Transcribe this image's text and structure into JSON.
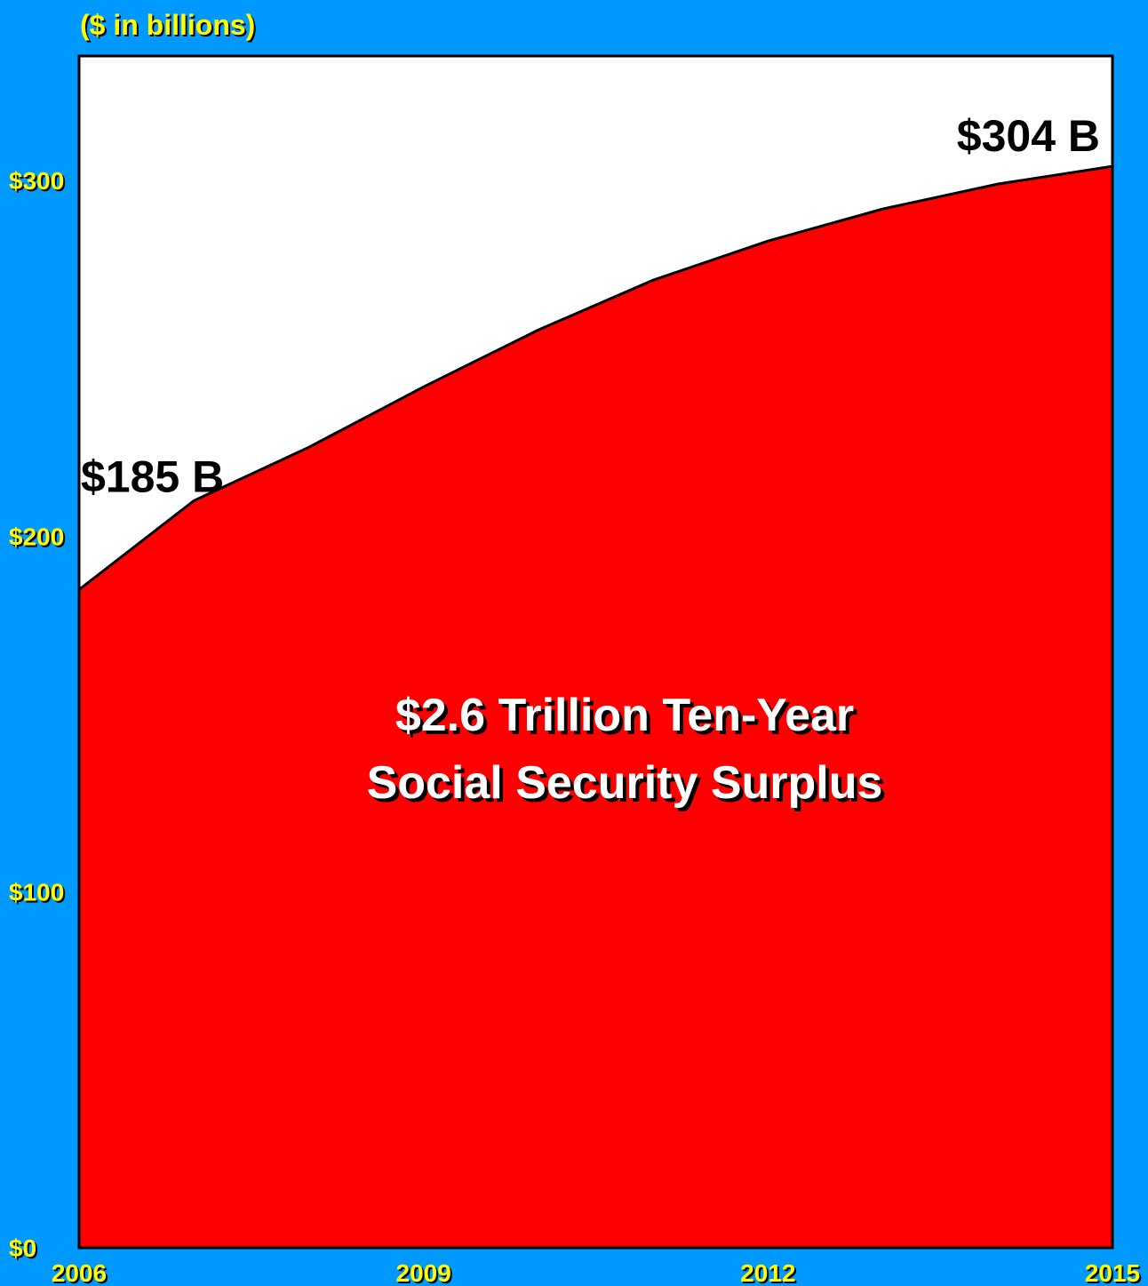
{
  "colors": {
    "background": "#0099ff",
    "plot_area": "#ffffff",
    "area_fill": "#ff0000",
    "axis_label_text": "#ffff00",
    "annotation_text": "#000000",
    "center_text": "#ffffff"
  },
  "chart_data": {
    "type": "area",
    "title": "",
    "unit_label": "($ in billions)",
    "xlabel": "",
    "ylabel": "",
    "x": [
      2006,
      2007,
      2008,
      2009,
      2010,
      2011,
      2012,
      2013,
      2014,
      2015
    ],
    "xlim": [
      2006,
      2015
    ],
    "ylim": [
      0,
      335
    ],
    "x_ticks": [
      "2006",
      "2009",
      "2012",
      "2015"
    ],
    "y_ticks": [
      "$0",
      "$100",
      "$200",
      "$300"
    ],
    "grid": false,
    "legend": "none",
    "series": [
      {
        "values": [
          185,
          210,
          225,
          242,
          258,
          272,
          283,
          292,
          299,
          304
        ]
      }
    ],
    "annotations": {
      "start_value": "$185 B",
      "end_value": "$304 B",
      "center_line1": "$2.6 Trillion Ten-Year",
      "center_line2": "Social Security Surplus"
    }
  }
}
